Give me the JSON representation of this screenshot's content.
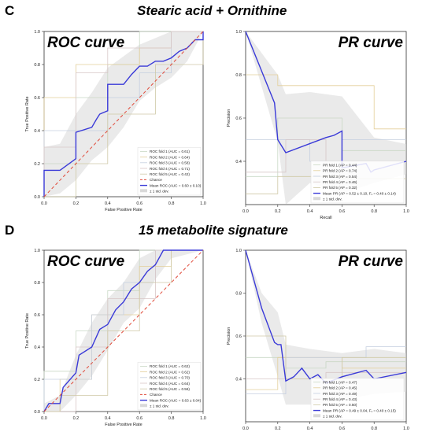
{
  "panels": [
    {
      "letter": "C",
      "title": "Stearic acid + Ornithine"
    },
    {
      "letter": "D",
      "title": "15 metabolite signature"
    }
  ],
  "colors": {
    "mean": "#3a3ad8",
    "chance": "#e04a3a",
    "band": "#d9d9d9",
    "folds": [
      "#c9d8c5",
      "#e3cf9a",
      "#c5cfe0",
      "#d8c7c7",
      "#cfc9a6"
    ]
  },
  "chart_data": [
    {
      "type": "line",
      "panel": "C",
      "big_title": "ROC curve",
      "xlabel": "False Positive Rate",
      "ylabel": "True Positive Rate",
      "xlim": [
        0,
        1
      ],
      "ylim": [
        0,
        1
      ],
      "xticks": [
        "0.0",
        "0.2",
        "0.4",
        "0.6",
        "0.8",
        "1.0"
      ],
      "yticks": [
        "0.0",
        "0.2",
        "0.4",
        "0.6",
        "0.8",
        "1.0"
      ],
      "grid": false,
      "legend_position": "bottom-right",
      "legend": [
        "ROC fold 1 (AUC = 0.61)",
        "ROC fold 2 (AUC = 0.64)",
        "ROC fold 3 (AUC = 0.58)",
        "ROC fold 4 (AUC = 0.71)",
        "ROC fold 5 (AUC = 0.42)",
        "Chance",
        "Mean ROC (AUC = 0.60 ± 0.10)",
        "± 1 std. dev."
      ],
      "series": [
        {
          "name": "Mean ROC (AUC = 0.60 ± 0.10)",
          "x": [
            0,
            0,
            0.1,
            0.2,
            0.2,
            0.3,
            0.33,
            0.35,
            0.4,
            0.4,
            0.5,
            0.55,
            0.6,
            0.65,
            0.7,
            0.75,
            0.8,
            0.85,
            0.9,
            0.95,
            1.0,
            1.0
          ],
          "y": [
            0,
            0.16,
            0.16,
            0.23,
            0.39,
            0.42,
            0.47,
            0.5,
            0.52,
            0.68,
            0.68,
            0.74,
            0.79,
            0.79,
            0.82,
            0.82,
            0.84,
            0.88,
            0.9,
            0.95,
            0.95,
            1.0
          ]
        },
        {
          "name": "Chance",
          "x": [
            0,
            1
          ],
          "y": [
            0,
            1
          ]
        }
      ],
      "band": {
        "x": [
          0,
          0.1,
          0.2,
          0.3,
          0.4,
          0.5,
          0.6,
          0.7,
          0.8,
          0.9,
          1.0
        ],
        "upper": [
          0.3,
          0.32,
          0.5,
          0.63,
          0.78,
          0.85,
          0.92,
          0.96,
          1.0,
          1.0,
          1.0
        ],
        "lower": [
          0,
          0.02,
          0.1,
          0.22,
          0.3,
          0.42,
          0.58,
          0.66,
          0.72,
          0.82,
          1.0
        ]
      },
      "folds": [
        {
          "x": [
            0,
            0,
            0.2,
            0.2,
            0.4,
            0.4,
            0.6,
            0.6,
            1.0
          ],
          "y": [
            0,
            0.2,
            0.2,
            0.6,
            0.6,
            0.8,
            0.8,
            1.0,
            1.0
          ]
        },
        {
          "x": [
            0,
            0,
            0.2,
            0.2,
            0.6,
            0.6,
            0.8,
            0.8,
            1.0
          ],
          "y": [
            0,
            0.6,
            0.6,
            0.8,
            0.8,
            0.9,
            0.9,
            1.0,
            1.0
          ]
        },
        {
          "x": [
            0,
            0,
            0.4,
            0.4,
            0.6,
            0.6,
            0.8,
            0.8,
            1.0
          ],
          "y": [
            0,
            0.4,
            0.4,
            0.6,
            0.6,
            0.75,
            0.75,
            1.0,
            1.0
          ]
        },
        {
          "x": [
            0,
            0,
            0.2,
            0.2,
            0.4,
            0.4,
            0.8,
            0.8,
            1.0
          ],
          "y": [
            0,
            0.3,
            0.3,
            0.75,
            0.75,
            0.9,
            0.9,
            1.0,
            1.0
          ]
        },
        {
          "x": [
            0,
            0.2,
            0.2,
            0.4,
            0.4,
            0.7,
            0.7,
            1.0,
            1.0
          ],
          "y": [
            0,
            0,
            0.2,
            0.2,
            0.5,
            0.5,
            0.8,
            0.8,
            1.0
          ]
        }
      ]
    },
    {
      "type": "line",
      "panel": "C",
      "big_title": "PR curve",
      "xlabel": "Recall",
      "ylabel": "Precision",
      "xlim": [
        0,
        1
      ],
      "ylim": [
        0.2,
        1.0
      ],
      "xticks": [
        "0.0",
        "0.2",
        "0.4",
        "0.6",
        "0.8",
        "1.0"
      ],
      "yticks": [
        "0.4",
        "0.6",
        "0.8",
        "1.0"
      ],
      "ytick_values": [
        0.4,
        0.6,
        0.8,
        1.0
      ],
      "grid": false,
      "legend_position": "bottom-right",
      "legend": [
        "PR fold 1 (AP = 0.44)",
        "PR fold 2 (AP = 0.74)",
        "PR fold 3 (AP = 0.54)",
        "PR fold 4 (AP = 0.46)",
        "PR fold 5 (AP = 0.32)",
        "Mean PR (AP = 0.52 ± 0.10, F₁ = 0.40 ± 0.14)",
        "± 1 std. dev."
      ],
      "series": [
        {
          "name": "Mean PR (AP = 0.52 ± 0.10, F₁ = 0.40 ± 0.14)",
          "x": [
            0,
            0.18,
            0.2,
            0.25,
            0.5,
            0.55,
            0.6,
            0.6,
            0.75,
            0.78,
            0.8,
            1.0
          ],
          "y": [
            1.0,
            0.67,
            0.5,
            0.44,
            0.51,
            0.52,
            0.54,
            0.37,
            0.39,
            0.35,
            0.36,
            0.4
          ]
        }
      ],
      "band": {
        "x": [
          0,
          0.2,
          0.25,
          0.4,
          0.6,
          0.8,
          1.0
        ],
        "upper": [
          1.0,
          0.8,
          0.71,
          0.72,
          0.7,
          0.51,
          0.48
        ],
        "lower": [
          1.0,
          0.49,
          0.2,
          0.3,
          0.25,
          0.3,
          0.34
        ]
      },
      "folds": [
        {
          "x": [
            0,
            0.2,
            0.2,
            0.6,
            0.6,
            1.0
          ],
          "y": [
            0.33,
            0.33,
            0.6,
            0.6,
            0.45,
            0.45
          ]
        },
        {
          "x": [
            0,
            0.2,
            0.2,
            0.8,
            0.8,
            1.0
          ],
          "y": [
            0.8,
            0.8,
            0.75,
            0.75,
            0.55,
            0.55
          ]
        },
        {
          "x": [
            0,
            0.4,
            0.4,
            0.6,
            0.6,
            1.0
          ],
          "y": [
            0.5,
            0.5,
            0.4,
            0.4,
            0.5,
            0.5
          ]
        },
        {
          "x": [
            0,
            0.25,
            0.25,
            0.5,
            0.5,
            1.0
          ],
          "y": [
            0.35,
            0.35,
            0.5,
            0.5,
            0.4,
            0.4
          ]
        },
        {
          "x": [
            0,
            0.2,
            0.2,
            0.6,
            0.6,
            1.0
          ],
          "y": [
            0.25,
            0.25,
            0.33,
            0.33,
            0.32,
            0.32
          ]
        }
      ]
    },
    {
      "type": "line",
      "panel": "D",
      "big_title": "ROC curve",
      "xlabel": "False Positive Rate",
      "ylabel": "True Positive Rate",
      "xlim": [
        0,
        1
      ],
      "ylim": [
        0,
        1
      ],
      "xticks": [
        "0.0",
        "0.2",
        "0.4",
        "0.6",
        "0.8",
        "1.0"
      ],
      "yticks": [
        "0.0",
        "0.2",
        "0.4",
        "0.6",
        "0.8",
        "1.0"
      ],
      "grid": false,
      "legend_position": "bottom-right",
      "legend": [
        "ROC fold 1 (AUC = 0.62)",
        "ROC fold 2 (AUC = 0.62)",
        "ROC fold 3 (AUC = 0.70)",
        "ROC fold 4 (AUC = 0.64)",
        "ROC fold 5 (AUC = 0.56)",
        "Chance",
        "Mean ROC (AUC = 0.63 ± 0.04)",
        "± 1 std. dev."
      ],
      "series": [
        {
          "name": "Mean ROC (AUC = 0.63 ± 0.04)",
          "x": [
            0,
            0.03,
            0.1,
            0.12,
            0.2,
            0.22,
            0.3,
            0.35,
            0.4,
            0.45,
            0.5,
            0.55,
            0.6,
            0.65,
            0.7,
            0.75,
            1.0
          ],
          "y": [
            0,
            0.05,
            0.05,
            0.15,
            0.24,
            0.35,
            0.4,
            0.51,
            0.54,
            0.63,
            0.68,
            0.76,
            0.8,
            0.87,
            0.91,
            1.0,
            1.0
          ]
        },
        {
          "name": "Chance",
          "x": [
            0,
            1
          ],
          "y": [
            0,
            1
          ]
        }
      ],
      "band": {
        "x": [
          0,
          0.1,
          0.2,
          0.3,
          0.4,
          0.5,
          0.6,
          0.7,
          0.8,
          1.0
        ],
        "upper": [
          0.05,
          0.1,
          0.35,
          0.55,
          0.7,
          0.8,
          0.95,
          1.0,
          1.0,
          1.0
        ],
        "lower": [
          0,
          0,
          0.1,
          0.22,
          0.38,
          0.55,
          0.64,
          0.82,
          0.95,
          1.0
        ]
      },
      "folds": [
        {
          "x": [
            0,
            0,
            0.2,
            0.2,
            0.4,
            0.4,
            0.6,
            0.6,
            1.0
          ],
          "y": [
            0,
            0.25,
            0.25,
            0.5,
            0.5,
            0.75,
            0.75,
            1.0,
            1.0
          ]
        },
        {
          "x": [
            0,
            0.1,
            0.1,
            0.3,
            0.3,
            0.6,
            0.6,
            0.8,
            0.8,
            1.0
          ],
          "y": [
            0,
            0,
            0.2,
            0.2,
            0.6,
            0.6,
            0.9,
            0.9,
            1.0,
            1.0
          ]
        },
        {
          "x": [
            0,
            0,
            0.3,
            0.3,
            0.5,
            0.5,
            0.7,
            0.7,
            1.0
          ],
          "y": [
            0,
            0.2,
            0.2,
            0.6,
            0.6,
            0.8,
            0.8,
            1.0,
            1.0
          ]
        },
        {
          "x": [
            0,
            0.2,
            0.2,
            0.4,
            0.4,
            0.7,
            0.7,
            1.0
          ],
          "y": [
            0,
            0,
            0.4,
            0.4,
            0.7,
            0.7,
            1.0,
            1.0
          ]
        },
        {
          "x": [
            0,
            0.1,
            0.1,
            0.4,
            0.4,
            0.6,
            0.6,
            0.8,
            0.8,
            1.0
          ],
          "y": [
            0,
            0,
            0.1,
            0.1,
            0.5,
            0.5,
            0.8,
            0.8,
            1.0,
            1.0
          ]
        }
      ]
    },
    {
      "type": "line",
      "panel": "D",
      "big_title": "PR curve",
      "xlabel": "Recall",
      "ylabel": "Precision",
      "xlim": [
        0,
        1
      ],
      "ylim": [
        0.2,
        1.0
      ],
      "xticks": [
        "0.0",
        "0.2",
        "0.4",
        "0.6",
        "0.8",
        "1.0"
      ],
      "yticks": [
        "0.4",
        "0.6",
        "0.8",
        "1.0"
      ],
      "ytick_values": [
        0.4,
        0.6,
        0.8,
        1.0
      ],
      "grid": false,
      "legend_position": "bottom-right",
      "legend": [
        "PR fold 1 (AP = 0.47)",
        "PR fold 2 (AP = 0.45)",
        "PR fold 3 (AP = 0.49)",
        "PR fold 4 (AP = 0.43)",
        "PR fold 5 (AP = 0.50)",
        "Mean PR (AP = 0.49 ± 0.04, F₁ = 0.40 ± 0.15)",
        "± 1 std. dev."
      ],
      "series": [
        {
          "name": "Mean PR (AP = 0.49 ± 0.04, F₁ = 0.40 ± 0.15)",
          "x": [
            0,
            0.1,
            0.18,
            0.2,
            0.22,
            0.25,
            0.3,
            0.35,
            0.4,
            0.45,
            0.5,
            0.6,
            0.75,
            0.8,
            1.0
          ],
          "y": [
            1.0,
            0.73,
            0.57,
            0.56,
            0.56,
            0.39,
            0.41,
            0.45,
            0.4,
            0.42,
            0.38,
            0.41,
            0.44,
            0.4,
            0.43
          ]
        }
      ],
      "band": {
        "x": [
          0,
          0.1,
          0.2,
          0.25,
          0.4,
          0.6,
          0.8,
          1.0
        ],
        "upper": [
          1.0,
          0.8,
          0.71,
          0.56,
          0.54,
          0.52,
          0.54,
          0.52
        ],
        "lower": [
          1.0,
          0.66,
          0.41,
          0.28,
          0.28,
          0.3,
          0.33,
          0.34
        ]
      },
      "folds": [
        {
          "x": [
            0,
            0.25,
            0.25,
            0.5,
            0.5,
            1.0
          ],
          "y": [
            0.5,
            0.5,
            0.45,
            0.45,
            0.48,
            0.48
          ]
        },
        {
          "x": [
            0,
            0.2,
            0.2,
            0.6,
            0.6,
            1.0
          ],
          "y": [
            0.35,
            0.35,
            0.5,
            0.5,
            0.45,
            0.45
          ]
        },
        {
          "x": [
            0,
            0.25,
            0.25,
            0.75,
            0.75,
            1.0
          ],
          "y": [
            0.33,
            0.33,
            0.5,
            0.5,
            0.55,
            0.55
          ]
        },
        {
          "x": [
            0,
            0.5,
            0.5,
            1.0
          ],
          "y": [
            0.4,
            0.4,
            0.43,
            0.43
          ]
        },
        {
          "x": [
            0,
            0.25,
            0.25,
            0.6,
            0.6,
            1.0
          ],
          "y": [
            0.6,
            0.6,
            0.4,
            0.4,
            0.5,
            0.5
          ]
        }
      ]
    }
  ]
}
